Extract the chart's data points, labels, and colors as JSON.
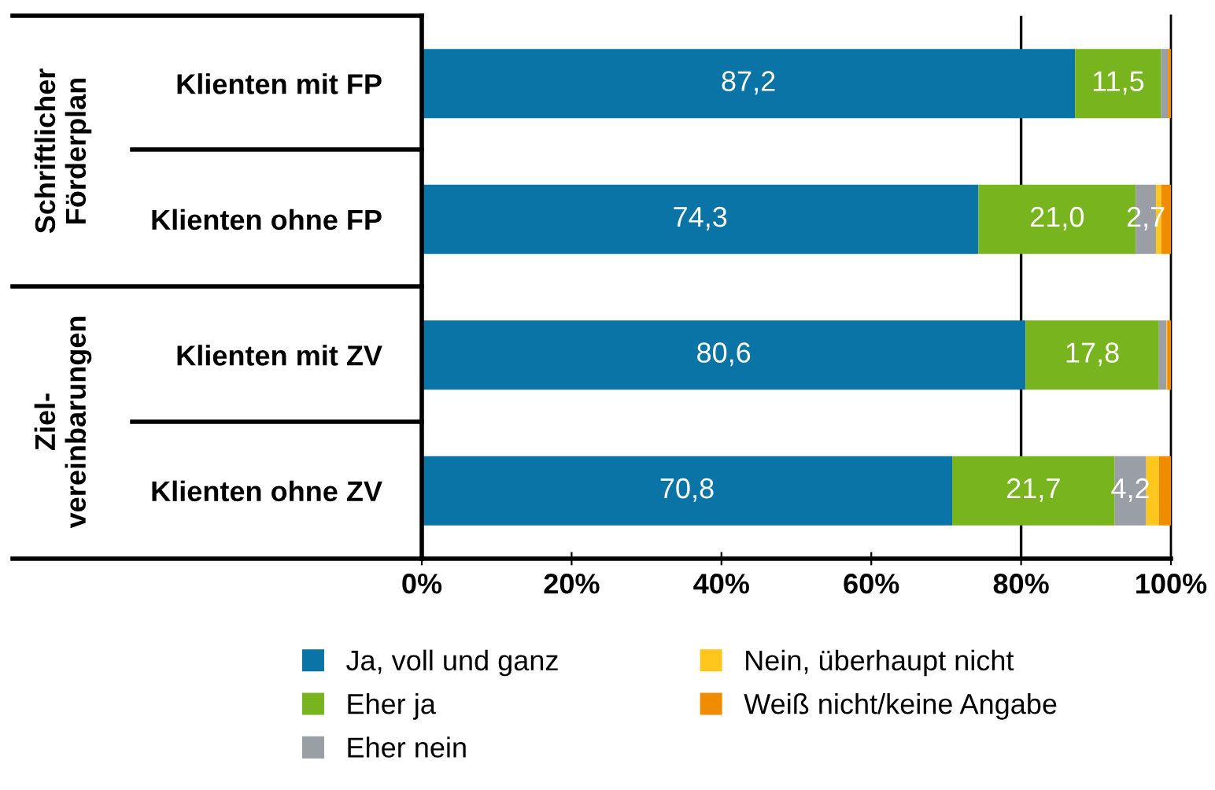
{
  "chart_data": {
    "type": "bar",
    "orientation": "horizontal",
    "stacked": true,
    "categories": [
      "Klienten mit FP",
      "Klienten ohne FP",
      "Klienten mit ZV",
      "Klienten ohne ZV"
    ],
    "series": [
      {
        "name": "Ja, voll und ganz",
        "color": "#0a74a6",
        "values": [
          87.2,
          74.3,
          80.6,
          70.8
        ],
        "value_labels": [
          "87,2",
          "74,3",
          "80,6",
          "70,8"
        ]
      },
      {
        "name": "Eher ja",
        "color": "#78b41e",
        "values": [
          11.5,
          21.0,
          17.8,
          21.7
        ],
        "value_labels": [
          "11,5",
          "21,0",
          "17,8",
          "21,7"
        ]
      },
      {
        "name": "Eher nein",
        "color": "#9a9fa6",
        "values": [
          0.9,
          2.7,
          1.0,
          4.2
        ],
        "value_labels": [
          null,
          "2,7",
          null,
          "4,2"
        ]
      },
      {
        "name": "Nein, überhaupt nicht",
        "color": "#ffc61e",
        "values": [
          0.0,
          0.7,
          0.1,
          1.7
        ],
        "value_labels": [
          null,
          null,
          null,
          null
        ]
      },
      {
        "name": "Weiß nicht/keine Angabe",
        "color": "#f08c00",
        "values": [
          0.4,
          1.3,
          0.5,
          1.6
        ],
        "value_labels": [
          null,
          null,
          null,
          null
        ]
      }
    ],
    "xlim": [
      0,
      100
    ],
    "xticks": [
      {
        "value": 0,
        "label": "0%"
      },
      {
        "value": 20,
        "label": "20%"
      },
      {
        "value": 40,
        "label": "40%"
      },
      {
        "value": 60,
        "label": "60%"
      },
      {
        "value": 80,
        "label": "80%"
      },
      {
        "value": 100,
        "label": "100%"
      }
    ],
    "ref_lines": [
      {
        "axis": "x",
        "value": 80,
        "color": "#000000"
      }
    ],
    "annotations": [
      "Schriftlicher\nFörderplan",
      "Ziel-\nvereinbarungen"
    ],
    "legend": "bottom",
    "grid": false
  }
}
